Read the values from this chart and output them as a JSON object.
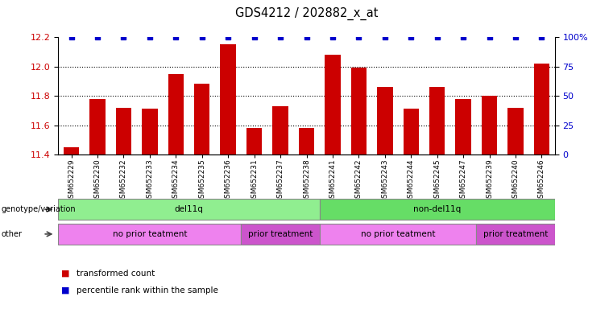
{
  "title": "GDS4212 / 202882_x_at",
  "samples": [
    "GSM652229",
    "GSM652230",
    "GSM652232",
    "GSM652233",
    "GSM652234",
    "GSM652235",
    "GSM652236",
    "GSM652231",
    "GSM652237",
    "GSM652238",
    "GSM652241",
    "GSM652242",
    "GSM652243",
    "GSM652244",
    "GSM652245",
    "GSM652247",
    "GSM652239",
    "GSM652240",
    "GSM652246"
  ],
  "bar_values": [
    11.45,
    11.78,
    11.72,
    11.71,
    11.95,
    11.88,
    12.15,
    11.58,
    11.73,
    11.58,
    12.08,
    11.99,
    11.86,
    11.71,
    11.86,
    11.78,
    11.8,
    11.72,
    12.02
  ],
  "percentile_values": [
    100,
    100,
    100,
    100,
    100,
    100,
    100,
    100,
    100,
    100,
    100,
    100,
    100,
    100,
    100,
    100,
    100,
    100,
    100
  ],
  "bar_color": "#cc0000",
  "dot_color": "#0000cc",
  "ylim_left": [
    11.4,
    12.2
  ],
  "ylim_right": [
    0,
    100
  ],
  "yticks_left": [
    11.4,
    11.6,
    11.8,
    12.0,
    12.2
  ],
  "yticks_right": [
    0,
    25,
    50,
    75,
    100
  ],
  "grid_ticks": [
    11.6,
    11.8,
    12.0
  ],
  "genotype_groups": [
    {
      "label": "del11q",
      "start": 0,
      "end": 10,
      "color": "#90ee90"
    },
    {
      "label": "non-del11q",
      "start": 10,
      "end": 19,
      "color": "#66dd66"
    }
  ],
  "other_groups": [
    {
      "label": "no prior teatment",
      "start": 0,
      "end": 7,
      "color": "#ee82ee"
    },
    {
      "label": "prior treatment",
      "start": 7,
      "end": 10,
      "color": "#cc55cc"
    },
    {
      "label": "no prior teatment",
      "start": 10,
      "end": 16,
      "color": "#ee82ee"
    },
    {
      "label": "prior treatment",
      "start": 16,
      "end": 19,
      "color": "#cc55cc"
    }
  ],
  "legend_items": [
    {
      "label": "transformed count",
      "color": "#cc0000"
    },
    {
      "label": "percentile rank within the sample",
      "color": "#0000cc"
    }
  ],
  "axis_label_color_left": "#cc0000",
  "axis_label_color_right": "#0000cc",
  "bar_bottom": 11.4,
  "row_label_arrow_color": "#555555"
}
